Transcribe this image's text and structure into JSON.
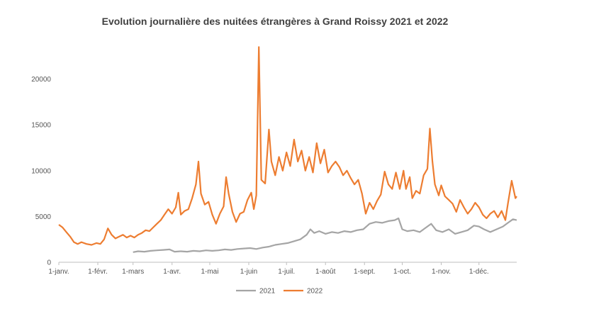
{
  "chart_data": {
    "type": "line",
    "title": "Evolution journalière des nuitées étrangères à Grand Roissy 2021 et 2022",
    "xlabel": "",
    "ylabel": "",
    "ylim": [
      0,
      25000
    ],
    "y_ticks": [
      0,
      5000,
      10000,
      15000,
      20000
    ],
    "y_tick_labels": [
      "0",
      "5000",
      "10000",
      "15000",
      "20000"
    ],
    "x_domain_days": [
      0,
      364
    ],
    "x_ticks": [
      {
        "label": "1-janv.",
        "day": 0
      },
      {
        "label": "1-févr.",
        "day": 31
      },
      {
        "label": "1-mars",
        "day": 59
      },
      {
        "label": "1-avr.",
        "day": 90
      },
      {
        "label": "1-mai",
        "day": 120
      },
      {
        "label": "1-juin",
        "day": 151
      },
      {
        "label": "1-juil.",
        "day": 181
      },
      {
        "label": "1-août",
        "day": 212
      },
      {
        "label": "1-sept.",
        "day": 243
      },
      {
        "label": "1-oct.",
        "day": 273
      },
      {
        "label": "1-nov.",
        "day": 304
      },
      {
        "label": "1-déc.",
        "day": 334
      }
    ],
    "legend_position": "bottom",
    "grid": false,
    "series": [
      {
        "name": "2021",
        "color": "#A5A5A5",
        "points": [
          [
            59,
            1100
          ],
          [
            63,
            1200
          ],
          [
            68,
            1150
          ],
          [
            73,
            1250
          ],
          [
            78,
            1300
          ],
          [
            83,
            1350
          ],
          [
            88,
            1400
          ],
          [
            92,
            1150
          ],
          [
            97,
            1200
          ],
          [
            102,
            1150
          ],
          [
            107,
            1250
          ],
          [
            112,
            1200
          ],
          [
            117,
            1300
          ],
          [
            122,
            1250
          ],
          [
            127,
            1300
          ],
          [
            132,
            1400
          ],
          [
            137,
            1350
          ],
          [
            142,
            1450
          ],
          [
            147,
            1500
          ],
          [
            152,
            1550
          ],
          [
            157,
            1450
          ],
          [
            162,
            1600
          ],
          [
            167,
            1700
          ],
          [
            172,
            1900
          ],
          [
            177,
            2000
          ],
          [
            182,
            2100
          ],
          [
            187,
            2300
          ],
          [
            192,
            2500
          ],
          [
            197,
            3000
          ],
          [
            200,
            3600
          ],
          [
            203,
            3200
          ],
          [
            207,
            3400
          ],
          [
            212,
            3100
          ],
          [
            217,
            3300
          ],
          [
            222,
            3200
          ],
          [
            227,
            3400
          ],
          [
            232,
            3300
          ],
          [
            237,
            3500
          ],
          [
            242,
            3600
          ],
          [
            247,
            4200
          ],
          [
            252,
            4400
          ],
          [
            257,
            4300
          ],
          [
            262,
            4500
          ],
          [
            267,
            4600
          ],
          [
            270,
            4800
          ],
          [
            273,
            3600
          ],
          [
            277,
            3400
          ],
          [
            282,
            3500
          ],
          [
            287,
            3300
          ],
          [
            292,
            3800
          ],
          [
            296,
            4200
          ],
          [
            300,
            3500
          ],
          [
            305,
            3300
          ],
          [
            310,
            3600
          ],
          [
            315,
            3100
          ],
          [
            320,
            3300
          ],
          [
            325,
            3500
          ],
          [
            330,
            4000
          ],
          [
            334,
            3900
          ],
          [
            338,
            3600
          ],
          [
            343,
            3300
          ],
          [
            348,
            3600
          ],
          [
            353,
            3900
          ],
          [
            357,
            4300
          ],
          [
            361,
            4700
          ],
          [
            364,
            4600
          ]
        ]
      },
      {
        "name": "2022",
        "color": "#ED7D31",
        "points": [
          [
            0,
            4100
          ],
          [
            3,
            3800
          ],
          [
            6,
            3300
          ],
          [
            9,
            2800
          ],
          [
            12,
            2200
          ],
          [
            15,
            2000
          ],
          [
            18,
            2200
          ],
          [
            22,
            2000
          ],
          [
            26,
            1900
          ],
          [
            30,
            2100
          ],
          [
            33,
            2000
          ],
          [
            36,
            2500
          ],
          [
            39,
            3700
          ],
          [
            42,
            3000
          ],
          [
            45,
            2600
          ],
          [
            48,
            2800
          ],
          [
            51,
            3000
          ],
          [
            54,
            2700
          ],
          [
            57,
            2900
          ],
          [
            60,
            2700
          ],
          [
            63,
            3000
          ],
          [
            66,
            3200
          ],
          [
            69,
            3500
          ],
          [
            72,
            3400
          ],
          [
            75,
            3800
          ],
          [
            78,
            4200
          ],
          [
            81,
            4600
          ],
          [
            84,
            5200
          ],
          [
            87,
            5800
          ],
          [
            90,
            5300
          ],
          [
            93,
            6000
          ],
          [
            95,
            7600
          ],
          [
            97,
            5200
          ],
          [
            100,
            5600
          ],
          [
            103,
            5800
          ],
          [
            106,
            7000
          ],
          [
            109,
            8500
          ],
          [
            111,
            11000
          ],
          [
            113,
            7500
          ],
          [
            116,
            6300
          ],
          [
            119,
            6600
          ],
          [
            122,
            5200
          ],
          [
            125,
            4200
          ],
          [
            128,
            5300
          ],
          [
            131,
            6100
          ],
          [
            133,
            9300
          ],
          [
            135,
            7500
          ],
          [
            138,
            5500
          ],
          [
            141,
            4400
          ],
          [
            144,
            5300
          ],
          [
            147,
            5500
          ],
          [
            150,
            6800
          ],
          [
            153,
            7600
          ],
          [
            155,
            5800
          ],
          [
            157,
            7300
          ],
          [
            159,
            23500
          ],
          [
            161,
            9000
          ],
          [
            164,
            8600
          ],
          [
            167,
            14500
          ],
          [
            169,
            11000
          ],
          [
            172,
            9500
          ],
          [
            175,
            11500
          ],
          [
            178,
            10000
          ],
          [
            181,
            12000
          ],
          [
            184,
            10500
          ],
          [
            187,
            13400
          ],
          [
            190,
            11000
          ],
          [
            193,
            12200
          ],
          [
            196,
            10000
          ],
          [
            199,
            11500
          ],
          [
            202,
            9800
          ],
          [
            205,
            13000
          ],
          [
            208,
            10800
          ],
          [
            211,
            12300
          ],
          [
            214,
            9800
          ],
          [
            217,
            10500
          ],
          [
            220,
            11000
          ],
          [
            223,
            10400
          ],
          [
            226,
            9500
          ],
          [
            229,
            10000
          ],
          [
            232,
            9200
          ],
          [
            235,
            8500
          ],
          [
            238,
            9000
          ],
          [
            241,
            7500
          ],
          [
            244,
            5300
          ],
          [
            247,
            6500
          ],
          [
            250,
            5800
          ],
          [
            253,
            6700
          ],
          [
            256,
            7400
          ],
          [
            259,
            9900
          ],
          [
            262,
            8500
          ],
          [
            265,
            8000
          ],
          [
            268,
            9800
          ],
          [
            271,
            8000
          ],
          [
            274,
            10000
          ],
          [
            276,
            8000
          ],
          [
            279,
            9300
          ],
          [
            281,
            7000
          ],
          [
            284,
            7800
          ],
          [
            287,
            7500
          ],
          [
            290,
            9500
          ],
          [
            293,
            10200
          ],
          [
            295,
            14600
          ],
          [
            297,
            11000
          ],
          [
            299,
            8500
          ],
          [
            302,
            7300
          ],
          [
            304,
            8400
          ],
          [
            307,
            7200
          ],
          [
            310,
            6800
          ],
          [
            313,
            6400
          ],
          [
            316,
            5500
          ],
          [
            319,
            6800
          ],
          [
            322,
            6000
          ],
          [
            325,
            5300
          ],
          [
            328,
            5800
          ],
          [
            331,
            6500
          ],
          [
            334,
            6000
          ],
          [
            337,
            5200
          ],
          [
            340,
            4800
          ],
          [
            343,
            5300
          ],
          [
            346,
            5600
          ],
          [
            349,
            4900
          ],
          [
            352,
            5600
          ],
          [
            355,
            4600
          ],
          [
            357,
            6400
          ],
          [
            360,
            8900
          ],
          [
            363,
            7000
          ],
          [
            364,
            7200
          ]
        ]
      }
    ]
  }
}
